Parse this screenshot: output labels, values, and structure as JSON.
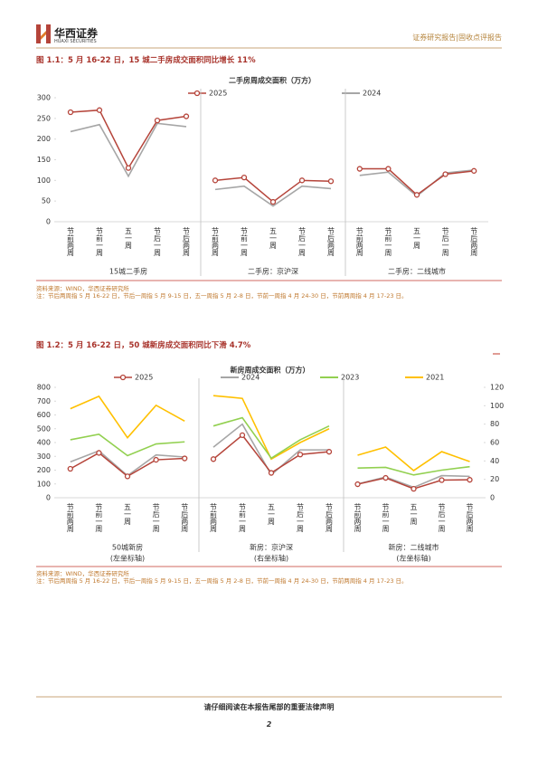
{
  "header": {
    "brand": "华西证券",
    "brand_en": "HUAXI SECURITIES",
    "report_type": "证券研究报告|固收点评报告"
  },
  "figures": [
    {
      "title": "图 1.1：5 月 16-22 日，15 城二手房成交面积同比增长 11%",
      "source": "资料来源：WIND，华西证券研究所",
      "note": "注：节后两周指 5 月 16-22 日，节后一周指 5 月 9-15 日，五一周指 5 月 2-8 日，节前一周指 4 月 24-30 日，节前两周指 4 月 17-23 日。"
    },
    {
      "title": "图 1.2：5 月 16-22 日，50 城新房成交面积同比下滑 4.7%",
      "source": "资料来源：WIND，华西证券研究所",
      "note": "注：节后两周指 5 月 16-22 日，节后一周指 5 月 9-15 日，五一周指 5 月 2-8 日，节前一周指 4 月 24-30 日，节前两周指 4 月 17-23 日。"
    }
  ],
  "chart_data": [
    {
      "type": "line",
      "title": "二手房周成交面积（万方）",
      "categories": [
        "节前两周",
        "节前一周",
        "五一周",
        "节后一周",
        "节后两周"
      ],
      "panels": [
        {
          "label": "15城二手房",
          "axis": "y"
        },
        {
          "label": "二手房：京沪深",
          "axis": "y"
        },
        {
          "label": "二手房：二线城市",
          "axis": "y"
        }
      ],
      "ylim": [
        0,
        300
      ],
      "yticks": [
        0,
        50,
        100,
        150,
        200,
        250,
        300
      ],
      "series": [
        {
          "name": "2025",
          "color": "#b5443a",
          "markers": true,
          "values": [
            [
              265,
              270,
              130,
              245,
              255
            ],
            [
              100,
              107,
              48,
              100,
              98
            ],
            [
              128,
              128,
              65,
              115,
              123
            ]
          ]
        },
        {
          "name": "2024",
          "color": "#a6a6a6",
          "markers": false,
          "values": [
            [
              218,
              235,
              110,
              238,
              230
            ],
            [
              78,
              86,
              38,
              86,
              80
            ],
            [
              112,
              120,
              62,
              118,
              125
            ]
          ]
        }
      ]
    },
    {
      "type": "line",
      "title": "新房周成交面积（万方）",
      "categories": [
        "节前两周",
        "节前一周",
        "五一周",
        "节后一周",
        "节后两周"
      ],
      "panels": [
        {
          "label": "50城新房",
          "axis_note": "(左坐标轴)",
          "axis": "y"
        },
        {
          "label": "新房：京沪深",
          "axis_note": "(右坐标轴)",
          "axis": "y2"
        },
        {
          "label": "新房：二线城市",
          "axis_note": "(左坐标轴)",
          "axis": "y"
        }
      ],
      "ylim": [
        0,
        800
      ],
      "yticks": [
        0,
        100,
        200,
        300,
        400,
        500,
        600,
        700,
        800
      ],
      "y2lim": [
        0,
        120
      ],
      "y2ticks": [
        0,
        20,
        40,
        60,
        80,
        100,
        120
      ],
      "series": [
        {
          "name": "2025",
          "color": "#b5443a",
          "markers": true,
          "values": [
            [
              210,
              325,
              155,
              275,
              285
            ],
            [
              42,
              68,
              27,
              47,
              50
            ],
            [
              98,
              144,
              65,
              128,
              130
            ]
          ]
        },
        {
          "name": "2024",
          "color": "#a6a6a6",
          "markers": false,
          "values": [
            [
              260,
              340,
              160,
              310,
              295
            ],
            [
              55,
              80,
              25,
              52,
              52
            ],
            [
              100,
              150,
              75,
              160,
              155
            ]
          ]
        },
        {
          "name": "2023",
          "color": "#92d050",
          "markers": false,
          "values": [
            [
              420,
              460,
              305,
              390,
              405
            ],
            [
              78,
              87,
              43,
              63,
              78
            ],
            [
              215,
              220,
              165,
              200,
              225
            ]
          ]
        },
        {
          "name": "2021",
          "color": "#ffc000",
          "markers": false,
          "values": [
            [
              645,
              735,
              435,
              670,
              555
            ],
            [
              111,
              108,
              42,
              60,
              75
            ],
            [
              308,
              367,
              197,
              334,
              262
            ]
          ]
        }
      ]
    }
  ],
  "footer": {
    "disclaimer": "请仔细阅读在本报告尾部的重要法律声明",
    "page": "2"
  }
}
